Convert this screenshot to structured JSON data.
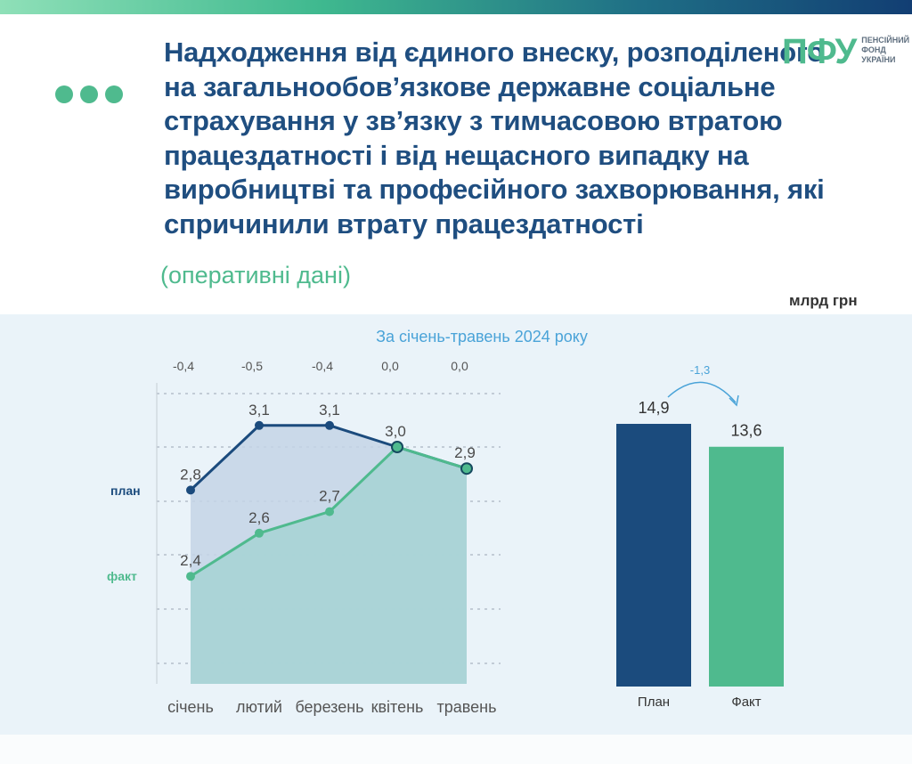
{
  "title": "Надходження від єдиного внеску, розподіленого на загальнообов’язкове державне соціальне страхування у зв’язку з тимчасовою втратою працездатності і від нещасного випадку на виробництві та професійного захворювання, які спричинили втрату працездатності",
  "subtitle": "(оперативні дані)",
  "unit": "млрд грн",
  "logo": {
    "mark": "ПФУ",
    "text": "ПЕНСІЙНИЙ ФОНД УКРАЇНИ"
  },
  "colors": {
    "plan": "#1b4b7d",
    "fact": "#4fba8e",
    "accent": "#4aa3d8"
  },
  "chart_data": [
    {
      "type": "line",
      "title": "За січень-травень 2024 року",
      "categories": [
        "січень",
        "лютий",
        "березень",
        "квітень",
        "травень"
      ],
      "series": [
        {
          "name": "план",
          "values": [
            2.8,
            3.1,
            3.1,
            3.0,
            2.9
          ],
          "labels": [
            "2,8",
            "3,1",
            "3,1",
            "3,0",
            "2,9"
          ]
        },
        {
          "name": "факт",
          "values": [
            2.4,
            2.6,
            2.7,
            3.0,
            2.9
          ],
          "labels": [
            "2,4",
            "2,6",
            "2,7",
            "3,0",
            "2,9"
          ]
        }
      ],
      "differences": [
        "-0,4",
        "-0,5",
        "-0,4",
        "0,0",
        "0,0"
      ],
      "grid": true
    },
    {
      "type": "bar",
      "categories": [
        "План",
        "Факт"
      ],
      "values": [
        14.9,
        13.6
      ],
      "labels": [
        "14,9",
        "13,6"
      ],
      "difference": "-1,3"
    }
  ]
}
